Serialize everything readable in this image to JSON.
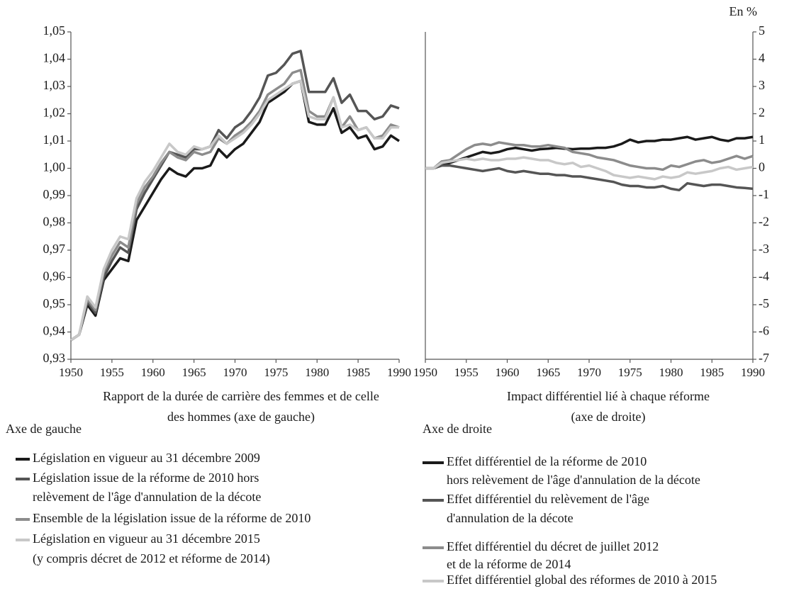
{
  "chart_data": [
    {
      "type": "line",
      "xlabel": [
        "Rapport de la durée de carrière des femmes et de celle",
        "des hommes (axe de gauche)"
      ],
      "legend_title": "Axe de gauche",
      "x": [
        1950,
        1951,
        1952,
        1953,
        1954,
        1955,
        1956,
        1957,
        1958,
        1959,
        1960,
        1961,
        1962,
        1963,
        1964,
        1965,
        1966,
        1967,
        1968,
        1969,
        1970,
        1971,
        1972,
        1973,
        1974,
        1975,
        1976,
        1977,
        1978,
        1979,
        1980,
        1981,
        1982,
        1983,
        1984,
        1985,
        1986,
        1987,
        1988,
        1989,
        1990
      ],
      "xlim": [
        1950,
        1990
      ],
      "xticks": [
        1950,
        1955,
        1960,
        1965,
        1970,
        1975,
        1980,
        1985,
        1990
      ],
      "ylim": [
        0.93,
        1.05
      ],
      "yticks": [
        {
          "value": 0.93,
          "label": "0,93"
        },
        {
          "value": 0.94,
          "label": "0,94"
        },
        {
          "value": 0.95,
          "label": "0,95"
        },
        {
          "value": 0.96,
          "label": "0,96"
        },
        {
          "value": 0.97,
          "label": "0,97"
        },
        {
          "value": 0.98,
          "label": "0,98"
        },
        {
          "value": 0.99,
          "label": "0,99"
        },
        {
          "value": 1.0,
          "label": "1,00"
        },
        {
          "value": 1.01,
          "label": "1,01"
        },
        {
          "value": 1.02,
          "label": "1,02"
        },
        {
          "value": 1.03,
          "label": "1,03"
        },
        {
          "value": 1.04,
          "label": "1,04"
        },
        {
          "value": 1.05,
          "label": "1,05"
        }
      ],
      "series": [
        {
          "name": [
            "Législation en vigueur au 31 décembre 2009"
          ],
          "color": "#1a1a1a",
          "values": [
            0.937,
            0.939,
            0.95,
            0.946,
            0.959,
            0.963,
            0.967,
            0.966,
            0.981,
            0.986,
            0.991,
            0.996,
            1.0,
            0.998,
            0.997,
            1.0,
            1.0,
            1.001,
            1.007,
            1.004,
            1.007,
            1.009,
            1.013,
            1.017,
            1.024,
            1.026,
            1.028,
            1.031,
            1.032,
            1.017,
            1.016,
            1.016,
            1.022,
            1.013,
            1.015,
            1.011,
            1.012,
            1.007,
            1.008,
            1.012,
            1.01
          ]
        },
        {
          "name": [
            "Législation issue de la réforme de 2010 hors",
            "relèvement de l'âge d'annulation de la décote"
          ],
          "color": "#555555",
          "values": [
            0.937,
            0.939,
            0.951,
            0.947,
            0.96,
            0.966,
            0.971,
            0.969,
            0.985,
            0.991,
            0.996,
            1.001,
            1.006,
            1.005,
            1.004,
            1.007,
            1.007,
            1.008,
            1.014,
            1.011,
            1.015,
            1.017,
            1.021,
            1.026,
            1.034,
            1.035,
            1.038,
            1.042,
            1.043,
            1.028,
            1.028,
            1.028,
            1.033,
            1.024,
            1.027,
            1.021,
            1.021,
            1.018,
            1.019,
            1.023,
            1.022
          ]
        },
        {
          "name": [
            "Ensemble de la législation issue de la réforme de 2010"
          ],
          "color": "#8c8c8c",
          "values": [
            0.937,
            0.939,
            0.952,
            0.948,
            0.962,
            0.968,
            0.973,
            0.971,
            0.987,
            0.993,
            0.997,
            1.002,
            1.006,
            1.004,
            1.003,
            1.006,
            1.005,
            1.006,
            1.011,
            1.009,
            1.012,
            1.014,
            1.017,
            1.021,
            1.027,
            1.029,
            1.031,
            1.035,
            1.036,
            1.021,
            1.019,
            1.019,
            1.026,
            1.015,
            1.019,
            1.014,
            1.015,
            1.011,
            1.012,
            1.016,
            1.015
          ]
        },
        {
          "name": [
            "Législation en vigueur au 31 décembre 2015",
            "(y compris décret de 2012 et réforme de 2014)"
          ],
          "color": "#c8c8c8",
          "values": [
            0.937,
            0.939,
            0.953,
            0.949,
            0.963,
            0.97,
            0.975,
            0.974,
            0.989,
            0.995,
            0.999,
            1.004,
            1.009,
            1.006,
            1.005,
            1.008,
            1.007,
            1.008,
            1.012,
            1.009,
            1.011,
            1.013,
            1.016,
            1.02,
            1.025,
            1.027,
            1.029,
            1.031,
            1.032,
            1.019,
            1.018,
            1.018,
            1.026,
            1.015,
            1.016,
            1.014,
            1.015,
            1.011,
            1.011,
            1.015,
            1.015
          ]
        }
      ]
    },
    {
      "type": "line",
      "xlabel": [
        "Impact différentiel lié à chaque réforme",
        "(axe de droite)"
      ],
      "legend_title": "Axe de droite",
      "unit_label": "En %",
      "x": [
        1950,
        1951,
        1952,
        1953,
        1954,
        1955,
        1956,
        1957,
        1958,
        1959,
        1960,
        1961,
        1962,
        1963,
        1964,
        1965,
        1966,
        1967,
        1968,
        1969,
        1970,
        1971,
        1972,
        1973,
        1974,
        1975,
        1976,
        1977,
        1978,
        1979,
        1980,
        1981,
        1982,
        1983,
        1984,
        1985,
        1986,
        1987,
        1988,
        1989,
        1990
      ],
      "xlim": [
        1950,
        1990
      ],
      "xticks": [
        1950,
        1955,
        1960,
        1965,
        1970,
        1975,
        1980,
        1985,
        1990
      ],
      "ylim": [
        -7,
        5
      ],
      "yticks": [
        -7,
        -6,
        -5,
        -4,
        -3,
        -2,
        -1,
        0,
        1,
        2,
        3,
        4,
        5
      ],
      "series": [
        {
          "name": [
            "Effet différentiel de la réforme de 2010",
            "hors relèvement de l'âge d'annulation de la décote"
          ],
          "color": "#1a1a1a",
          "values": [
            0,
            0,
            0.1,
            0.2,
            0.3,
            0.4,
            0.5,
            0.6,
            0.55,
            0.6,
            0.7,
            0.75,
            0.7,
            0.65,
            0.7,
            0.72,
            0.75,
            0.72,
            0.7,
            0.72,
            0.72,
            0.75,
            0.75,
            0.8,
            0.9,
            1.05,
            0.95,
            1.0,
            1.0,
            1.05,
            1.05,
            1.1,
            1.15,
            1.05,
            1.1,
            1.15,
            1.05,
            1.0,
            1.1,
            1.1,
            1.15
          ]
        },
        {
          "name": [
            "Effet différentiel du relèvement de l'âge",
            "d'annulation de la décote"
          ],
          "color": "#555555",
          "values": [
            0,
            0,
            0.1,
            0.1,
            0.05,
            0,
            -0.05,
            -0.1,
            -0.05,
            0,
            -0.1,
            -0.15,
            -0.1,
            -0.15,
            -0.2,
            -0.2,
            -0.25,
            -0.25,
            -0.3,
            -0.3,
            -0.35,
            -0.4,
            -0.45,
            -0.5,
            -0.6,
            -0.65,
            -0.65,
            -0.7,
            -0.7,
            -0.65,
            -0.75,
            -0.8,
            -0.55,
            -0.6,
            -0.65,
            -0.6,
            -0.6,
            -0.65,
            -0.7,
            -0.72,
            -0.75
          ]
        },
        {
          "name": [
            "Effet différentiel du décret de juillet 2012",
            "et de la réforme de 2014"
          ],
          "color": "#8c8c8c",
          "values": [
            0,
            0,
            0.25,
            0.3,
            0.5,
            0.7,
            0.85,
            0.9,
            0.85,
            0.95,
            0.9,
            0.85,
            0.85,
            0.8,
            0.8,
            0.85,
            0.8,
            0.75,
            0.6,
            0.55,
            0.5,
            0.4,
            0.35,
            0.3,
            0.2,
            0.1,
            0.05,
            0,
            0,
            -0.05,
            0.1,
            0.05,
            0.15,
            0.25,
            0.3,
            0.2,
            0.25,
            0.35,
            0.45,
            0.35,
            0.45
          ]
        },
        {
          "name": [
            "Effet différentiel global des réformes de 2010 à 2015"
          ],
          "color": "#c8c8c8",
          "values": [
            0,
            0,
            0.2,
            0.25,
            0.3,
            0.35,
            0.3,
            0.35,
            0.3,
            0.3,
            0.35,
            0.35,
            0.4,
            0.35,
            0.3,
            0.3,
            0.2,
            0.15,
            0.2,
            0.05,
            0.1,
            0,
            -0.1,
            -0.25,
            -0.3,
            -0.35,
            -0.3,
            -0.35,
            -0.4,
            -0.3,
            -0.35,
            -0.3,
            -0.15,
            -0.2,
            -0.15,
            -0.1,
            0,
            0.05,
            -0.05,
            0,
            0.05
          ]
        }
      ]
    }
  ]
}
